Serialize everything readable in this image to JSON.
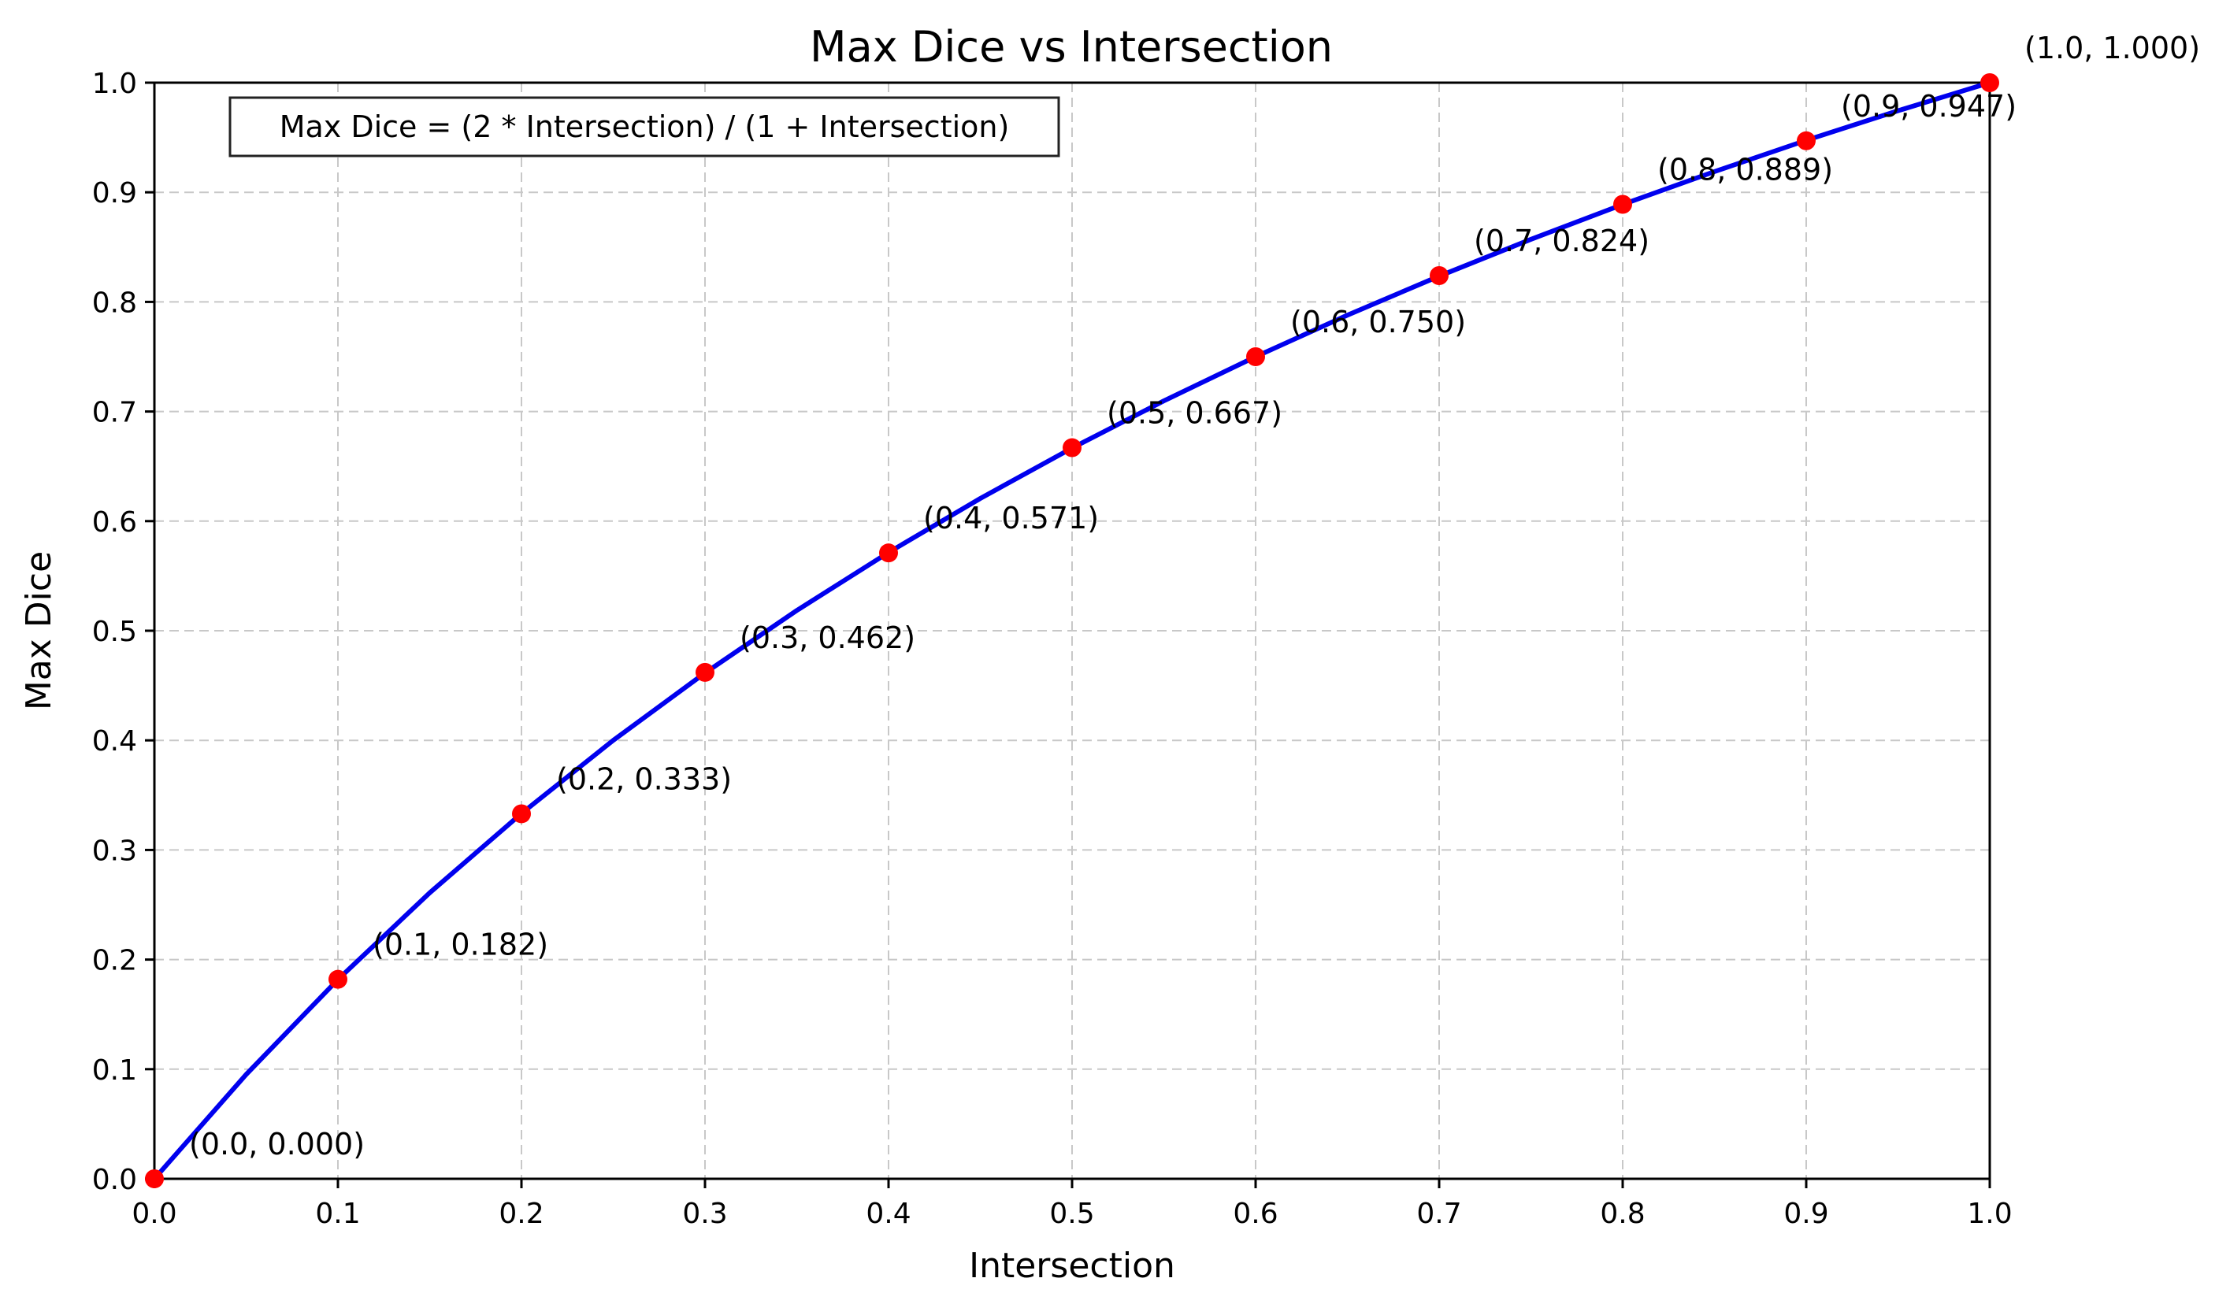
{
  "chart_data": {
    "type": "line",
    "title": "Max Dice vs Intersection",
    "xlabel": "Intersection",
    "ylabel": "Max Dice",
    "xlim": [
      0.0,
      1.0
    ],
    "ylim": [
      0.0,
      1.0
    ],
    "grid": true,
    "annotation_box": "Max Dice = (2 * Intersection) / (1 + Intersection)",
    "x_ticks": [
      0.0,
      0.1,
      0.2,
      0.3,
      0.4,
      0.5,
      0.6,
      0.7,
      0.8,
      0.9,
      1.0
    ],
    "x_tick_labels": [
      "0.0",
      "0.1",
      "0.2",
      "0.3",
      "0.4",
      "0.5",
      "0.6",
      "0.7",
      "0.8",
      "0.9",
      "1.0"
    ],
    "y_ticks": [
      0.0,
      0.1,
      0.2,
      0.3,
      0.4,
      0.5,
      0.6,
      0.7,
      0.8,
      0.9,
      1.0
    ],
    "y_tick_labels": [
      "0.0",
      "0.1",
      "0.2",
      "0.3",
      "0.4",
      "0.5",
      "0.6",
      "0.7",
      "0.8",
      "0.9",
      "1.0"
    ],
    "series": [
      {
        "style": "curve",
        "color": "#0000ee",
        "x": [
          0.0,
          0.05,
          0.1,
          0.15,
          0.2,
          0.25,
          0.3,
          0.35,
          0.4,
          0.45,
          0.5,
          0.55,
          0.6,
          0.65,
          0.7,
          0.75,
          0.8,
          0.85,
          0.9,
          0.95,
          1.0
        ],
        "y": [
          0.0,
          0.0952,
          0.1818,
          0.2609,
          0.3333,
          0.4,
          0.4615,
          0.5185,
          0.5714,
          0.6207,
          0.6667,
          0.7097,
          0.75,
          0.7879,
          0.8235,
          0.8571,
          0.8889,
          0.9189,
          0.9474,
          0.9744,
          1.0
        ]
      },
      {
        "style": "markers",
        "color": "#ff0000",
        "x": [
          0.0,
          0.1,
          0.2,
          0.3,
          0.4,
          0.5,
          0.6,
          0.7,
          0.8,
          0.9,
          1.0
        ],
        "y": [
          0.0,
          0.182,
          0.333,
          0.462,
          0.571,
          0.667,
          0.75,
          0.824,
          0.889,
          0.947,
          1.0
        ],
        "labels": [
          "(0.0, 0.000)",
          "(0.1, 0.182)",
          "(0.2, 0.333)",
          "(0.3, 0.462)",
          "(0.4, 0.571)",
          "(0.5, 0.667)",
          "(0.6, 0.750)",
          "(0.7, 0.824)",
          "(0.8, 0.889)",
          "(0.9, 0.947)",
          "(1.0, 1.000)"
        ]
      }
    ]
  }
}
